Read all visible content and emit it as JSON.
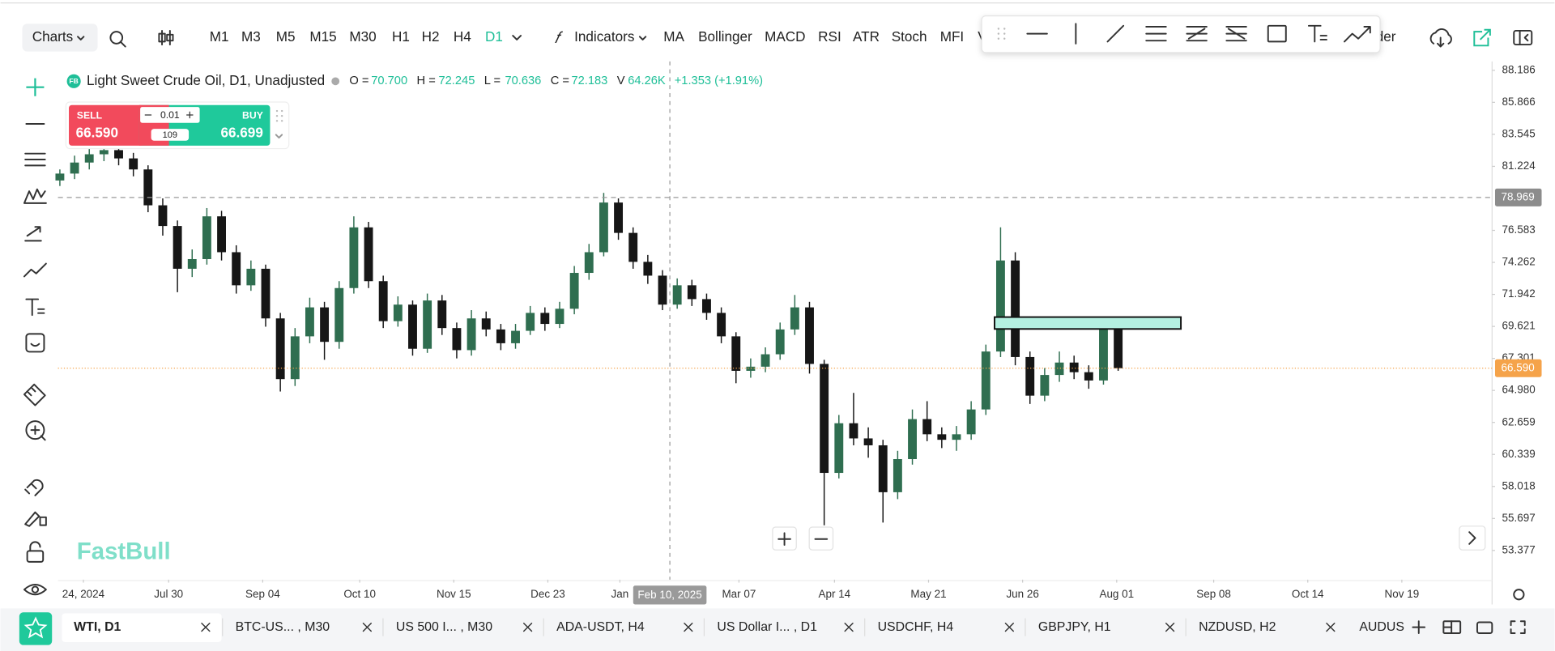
{
  "toolbar": {
    "charts": "Charts",
    "timeframes": [
      "M1",
      "M3",
      "M5",
      "M15",
      "M30",
      "H1",
      "H2",
      "H4",
      "D1"
    ],
    "indicators": "Indicators",
    "studies": [
      "MA",
      "Bollinger",
      "MACD",
      "RSI",
      "ATR",
      "Stoch",
      "MFI",
      "V"
    ],
    "order": "rder"
  },
  "symbol": {
    "badge": "FB",
    "name": "Light Sweet Crude Oil, D1, Unadjusted",
    "ohlcv": [
      {
        "label": "O =",
        "value": "70.700"
      },
      {
        "label": "H =",
        "value": "72.245"
      },
      {
        "label": "L =",
        "value": "70.636"
      },
      {
        "label": "C =",
        "value": "72.183"
      },
      {
        "label": "V",
        "value": "64.26K"
      }
    ],
    "change": "+1.353 (+1.91%)"
  },
  "trade": {
    "sell_label": "SELL",
    "sell_price": "66.590",
    "lot": "0.01",
    "spread": "109",
    "buy_label": "BUY",
    "buy_price": "66.699"
  },
  "chart_data": {
    "type": "candlestick",
    "up_color": "#2f6e50",
    "down_color": "#161616",
    "ohlc": [
      [
        80.2,
        81.0,
        79.8,
        80.7
      ],
      [
        80.7,
        82.0,
        80.3,
        81.5
      ],
      [
        81.5,
        82.6,
        81.0,
        82.1
      ],
      [
        82.1,
        82.9,
        81.6,
        82.4
      ],
      [
        82.4,
        82.8,
        81.3,
        81.8
      ],
      [
        81.8,
        82.2,
        80.5,
        81.0
      ],
      [
        81.0,
        81.3,
        77.9,
        78.4
      ],
      [
        78.4,
        78.9,
        76.2,
        76.9
      ],
      [
        76.9,
        77.3,
        72.1,
        73.8
      ],
      [
        73.8,
        75.2,
        73.2,
        74.5
      ],
      [
        74.5,
        78.2,
        74.1,
        77.6
      ],
      [
        77.6,
        78.0,
        74.4,
        75.0
      ],
      [
        75.0,
        75.5,
        72.0,
        72.6
      ],
      [
        72.6,
        74.4,
        72.2,
        73.8
      ],
      [
        73.8,
        74.1,
        69.6,
        70.2
      ],
      [
        70.2,
        70.6,
        64.9,
        65.8
      ],
      [
        65.8,
        69.5,
        65.3,
        68.9
      ],
      [
        68.9,
        71.7,
        68.4,
        71.0
      ],
      [
        71.0,
        71.4,
        67.2,
        68.5
      ],
      [
        68.5,
        72.9,
        68.0,
        72.4
      ],
      [
        72.4,
        77.6,
        72.0,
        76.8
      ],
      [
        76.8,
        77.2,
        72.4,
        72.9
      ],
      [
        72.9,
        73.3,
        69.5,
        70.0
      ],
      [
        70.0,
        71.8,
        69.6,
        71.2
      ],
      [
        71.2,
        71.5,
        67.5,
        68.0
      ],
      [
        68.0,
        72.0,
        67.7,
        71.5
      ],
      [
        71.5,
        71.9,
        69.0,
        69.5
      ],
      [
        69.5,
        69.9,
        67.3,
        67.9
      ],
      [
        67.9,
        70.8,
        67.5,
        70.2
      ],
      [
        70.2,
        70.7,
        68.9,
        69.4
      ],
      [
        69.4,
        69.8,
        67.9,
        68.4
      ],
      [
        68.4,
        69.8,
        68.0,
        69.3
      ],
      [
        69.3,
        71.1,
        69.0,
        70.6
      ],
      [
        70.6,
        71.0,
        69.3,
        69.8
      ],
      [
        69.8,
        71.4,
        69.5,
        70.9
      ],
      [
        70.9,
        74.0,
        70.5,
        73.5
      ],
      [
        73.5,
        75.6,
        73.0,
        75.0
      ],
      [
        75.0,
        79.3,
        74.7,
        78.6
      ],
      [
        78.6,
        78.9,
        75.9,
        76.4
      ],
      [
        76.4,
        76.8,
        73.8,
        74.3
      ],
      [
        74.3,
        74.8,
        72.7,
        73.3
      ],
      [
        73.3,
        73.7,
        70.8,
        71.2
      ],
      [
        71.2,
        73.1,
        70.9,
        72.6
      ],
      [
        72.6,
        73.0,
        71.1,
        71.6
      ],
      [
        71.6,
        72.0,
        70.1,
        70.6
      ],
      [
        70.6,
        71.0,
        68.4,
        68.9
      ],
      [
        68.9,
        69.2,
        65.5,
        66.4
      ],
      [
        66.4,
        67.3,
        65.9,
        66.7
      ],
      [
        66.7,
        68.1,
        66.3,
        67.6
      ],
      [
        67.6,
        69.9,
        67.2,
        69.4
      ],
      [
        69.4,
        71.9,
        69.0,
        71.0
      ],
      [
        71.0,
        71.4,
        66.2,
        66.9
      ],
      [
        66.9,
        67.2,
        55.2,
        59.0
      ],
      [
        59.0,
        63.2,
        58.6,
        62.6
      ],
      [
        62.6,
        64.8,
        61.0,
        61.5
      ],
      [
        61.5,
        62.3,
        60.1,
        61.0
      ],
      [
        61.0,
        61.4,
        55.4,
        57.6
      ],
      [
        57.6,
        60.6,
        57.1,
        60.0
      ],
      [
        60.0,
        63.6,
        59.6,
        62.9
      ],
      [
        62.9,
        64.2,
        61.3,
        61.8
      ],
      [
        61.8,
        62.3,
        60.8,
        61.4
      ],
      [
        61.4,
        62.4,
        60.6,
        61.8
      ],
      [
        61.8,
        64.2,
        61.4,
        63.6
      ],
      [
        63.6,
        68.3,
        63.2,
        67.8
      ],
      [
        67.8,
        76.8,
        67.4,
        74.4
      ],
      [
        74.4,
        75.0,
        66.8,
        67.4
      ],
      [
        67.4,
        67.8,
        64.0,
        64.6
      ],
      [
        64.6,
        66.6,
        64.2,
        66.1
      ],
      [
        66.1,
        67.8,
        65.6,
        67.0
      ],
      [
        67.0,
        67.5,
        65.8,
        66.3
      ],
      [
        66.3,
        66.8,
        65.1,
        65.7
      ],
      [
        65.7,
        70.0,
        65.4,
        69.4
      ],
      [
        69.4,
        69.9,
        66.4,
        66.59
      ]
    ],
    "xlim": [
      -0.13,
      97.44
    ],
    "xticks": [
      {
        "value": 1.6,
        "label": "24, 2024"
      },
      {
        "value": 7.4,
        "label": "Jul 30"
      },
      {
        "value": 13.8,
        "label": "Sep 04"
      },
      {
        "value": 20.4,
        "label": "Oct 10"
      },
      {
        "value": 26.8,
        "label": "Nov 15"
      },
      {
        "value": 33.2,
        "label": "Dec 23"
      },
      {
        "value": 38.1,
        "label": "Jan"
      },
      {
        "value": 46.2,
        "label": "Mar 07"
      },
      {
        "value": 52.7,
        "label": "Apr 14"
      },
      {
        "value": 59.1,
        "label": "May 21"
      },
      {
        "value": 65.5,
        "label": "Jun 26"
      },
      {
        "value": 71.9,
        "label": "Aug 01"
      },
      {
        "value": 78.5,
        "label": "Sep 08"
      },
      {
        "value": 84.9,
        "label": "Oct 14"
      },
      {
        "value": 91.3,
        "label": "Nov 19"
      }
    ],
    "ylim": [
      51.26,
      88.83
    ],
    "yticks": [
      88.186,
      85.866,
      83.545,
      81.224,
      76.583,
      74.262,
      71.942,
      69.621,
      67.301,
      {
        "value": 64.98,
        "label": "64.980"
      },
      62.659,
      60.339,
      58.018,
      55.697,
      53.377
    ],
    "grid": false,
    "reference_line": 78.969,
    "price_line": {
      "value": 66.59,
      "label": "66.590"
    },
    "crosshair": {
      "x": 41.5,
      "label": "Feb 10, 2025"
    }
  },
  "watermark": "FastBull",
  "tabs": [
    "WTI, D1",
    "BTC-US... , M30",
    "US 500 I... , M30",
    "ADA-USDT, H4",
    "US Dollar I... , D1",
    "USDCHF, H4",
    "GBPJPY, H1",
    "NZDUSD, H2",
    "AUDUS"
  ]
}
